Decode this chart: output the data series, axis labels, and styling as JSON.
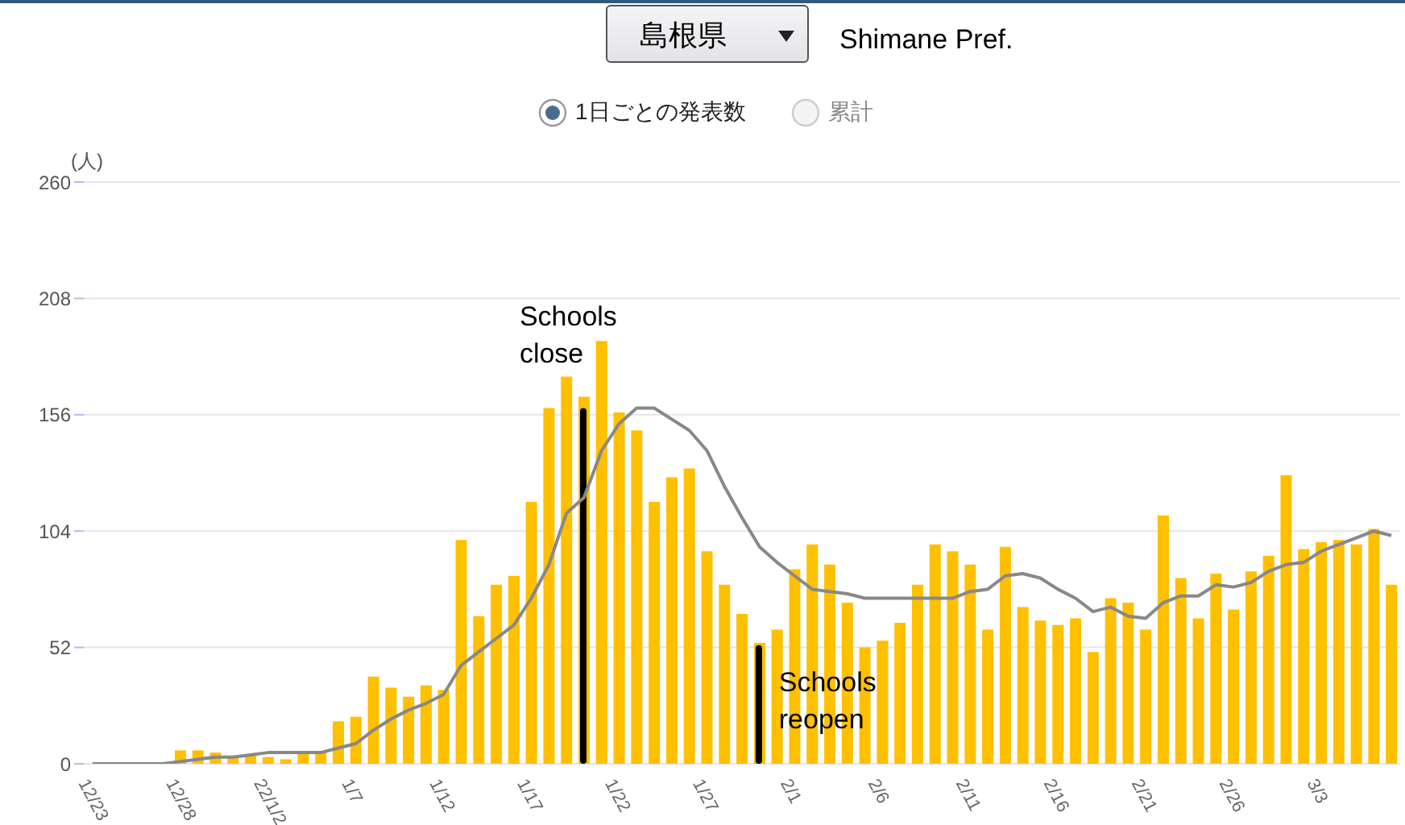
{
  "chart_data": {
    "type": "bar",
    "title": "島根県",
    "subtitle": "Shimane Pref.",
    "ylabel": "(人)",
    "categories": [
      "12/23",
      null,
      null,
      null,
      null,
      "12/28",
      null,
      null,
      null,
      null,
      "22/1/2",
      null,
      null,
      null,
      null,
      "1/7",
      null,
      null,
      null,
      null,
      "1/12",
      null,
      null,
      null,
      null,
      "1/17",
      null,
      null,
      null,
      null,
      "1/22",
      null,
      null,
      null,
      null,
      "1/27",
      null,
      null,
      null,
      null,
      "2/1",
      null,
      null,
      null,
      null,
      "2/6",
      null,
      null,
      null,
      null,
      "2/11",
      null,
      null,
      null,
      null,
      "2/16",
      null,
      null,
      null,
      null,
      "2/21",
      null,
      null,
      null,
      null,
      "2/26",
      null,
      null,
      null,
      null,
      "3/3",
      null,
      null,
      null,
      null
    ],
    "series": [
      {
        "color": "#ffc000",
        "values": [
          0,
          0,
          0,
          0,
          0,
          6,
          6,
          5,
          3,
          4,
          3,
          2,
          5,
          5,
          19,
          21,
          39,
          34,
          30,
          35,
          33,
          100,
          66,
          80,
          84,
          117,
          159,
          173,
          164,
          189,
          157,
          149,
          117,
          128,
          132,
          95,
          80,
          67,
          54,
          60,
          87,
          98,
          89,
          72,
          52,
          55,
          63,
          80,
          98,
          95,
          89,
          60,
          97,
          70,
          64,
          62,
          65,
          50,
          74,
          72,
          60,
          111,
          83,
          65,
          85,
          69,
          86,
          93,
          129,
          96,
          99,
          100,
          98,
          105,
          80
        ]
      },
      {
        "type": "line",
        "color": "#888888",
        "values": [
          0,
          0,
          0,
          0,
          0,
          1,
          2,
          3,
          3,
          4,
          5,
          5,
          5,
          5,
          7,
          9,
          15,
          20,
          24,
          27,
          31,
          44,
          50,
          56,
          62,
          74,
          89,
          112,
          119,
          140,
          152,
          159,
          159,
          154,
          149,
          140,
          124,
          110,
          97,
          90,
          84,
          78,
          77,
          76,
          74,
          74,
          74,
          74,
          74,
          74,
          77,
          78,
          84,
          85,
          83,
          78,
          74,
          68,
          70,
          66,
          65,
          72,
          75,
          75,
          80,
          79,
          81,
          86,
          89,
          90,
          95,
          98,
          101,
          104,
          102
        ]
      },
      {
        "color": "#000000",
        "values": [
          null,
          null,
          null,
          null,
          null,
          null,
          null,
          null,
          null,
          null,
          null,
          null,
          null,
          null,
          null,
          null,
          null,
          null,
          null,
          null,
          null,
          null,
          null,
          null,
          null,
          null,
          null,
          null,
          159,
          null,
          null,
          null,
          null,
          null,
          null,
          null,
          null,
          null,
          53,
          null,
          null,
          null,
          null,
          null,
          null,
          null,
          null,
          null,
          null,
          null,
          null,
          null,
          null,
          null,
          null,
          null,
          null,
          null,
          null,
          null,
          null,
          null,
          null,
          null,
          null,
          null,
          null,
          null,
          null,
          null,
          null,
          null,
          null,
          null,
          null
        ]
      }
    ],
    "annotations": [
      "Schools close",
      "Schools reopen",
      "1日ごとの発表数",
      "累計"
    ],
    "ylim": [
      0,
      260
    ],
    "yticks": [
      0,
      52,
      104,
      156,
      208,
      260
    ],
    "grid": "y",
    "legend": false
  }
}
